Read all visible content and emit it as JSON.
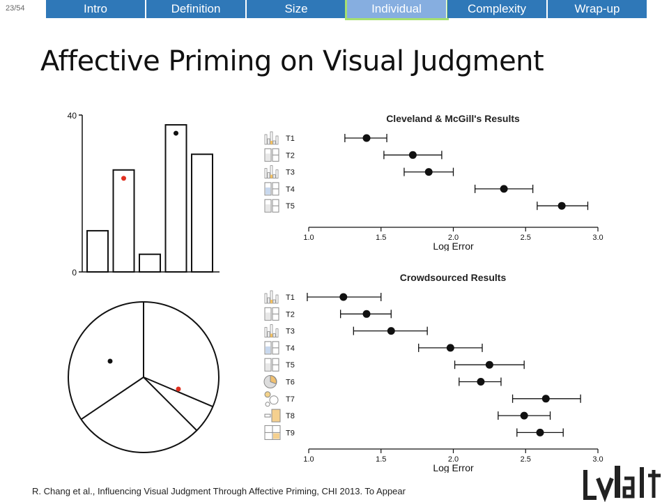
{
  "slide_counter": "23/54",
  "nav": {
    "tabs": [
      {
        "label": "Intro",
        "active": false
      },
      {
        "label": "Definition",
        "active": false
      },
      {
        "label": "Size",
        "active": false
      },
      {
        "label": "Individual",
        "active": true
      },
      {
        "label": "Complexity",
        "active": false
      },
      {
        "label": "Wrap-up",
        "active": false
      }
    ],
    "color_default": "#2f78b8",
    "color_active": "#86aee0",
    "active_glow": "#a6e070"
  },
  "title": "Affective Priming on Visual Judgment",
  "stimulus_bar": {
    "y_ticks": [
      "40",
      "0"
    ],
    "ylim": [
      0,
      40
    ],
    "values": [
      10.5,
      26,
      4.5,
      37.5,
      30
    ],
    "markers": [
      {
        "bar_index": 1,
        "color": "#e03020"
      },
      {
        "bar_index": 3,
        "color": "#111111"
      }
    ]
  },
  "stimulus_pie": {
    "slice_boundaries_deg": [
      90,
      337,
      214,
      315
    ],
    "markers": [
      {
        "region": "left",
        "color": "#111111"
      },
      {
        "region": "right-lower",
        "color": "#e03020"
      }
    ]
  },
  "chart_data": [
    {
      "type": "scatter",
      "title": "Cleveland & McGill's Results",
      "xlabel": "Log Error",
      "xlim": [
        1.0,
        3.0
      ],
      "x_ticks": [
        "1.0",
        "1.5",
        "2.0",
        "2.5",
        "3.0"
      ],
      "categories": [
        "T1",
        "T2",
        "T3",
        "T4",
        "T5"
      ],
      "values": [
        1.4,
        1.72,
        1.83,
        2.35,
        2.75
      ],
      "ci_low": [
        1.25,
        1.52,
        1.66,
        2.15,
        2.58
      ],
      "ci_high": [
        1.54,
        1.92,
        2.0,
        2.55,
        2.93
      ]
    },
    {
      "type": "scatter",
      "title": "Crowdsourced Results",
      "xlabel": "Log Error",
      "xlim": [
        1.0,
        3.0
      ],
      "x_ticks": [
        "1.0",
        "1.5",
        "2.0",
        "2.5",
        "3.0"
      ],
      "categories": [
        "T1",
        "T2",
        "T3",
        "T4",
        "T5",
        "T6",
        "T7",
        "T8",
        "T9"
      ],
      "values": [
        1.24,
        1.4,
        1.57,
        1.98,
        2.25,
        2.19,
        2.64,
        2.49,
        2.6
      ],
      "ci_low": [
        0.99,
        1.22,
        1.31,
        1.76,
        2.01,
        2.04,
        2.41,
        2.31,
        2.44
      ],
      "ci_high": [
        1.5,
        1.57,
        1.82,
        2.2,
        2.49,
        2.33,
        2.88,
        2.67,
        2.76
      ]
    }
  ],
  "citation": "R. Chang et al., Influencing Visual Judgment Through Affective Priming, CHI 2013.  To Appear",
  "logo_text": "VALT"
}
